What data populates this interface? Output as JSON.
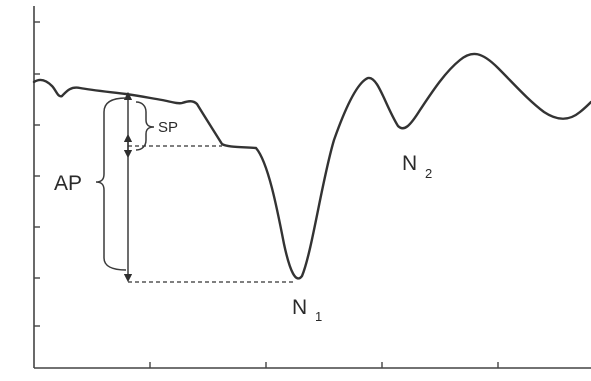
{
  "labels": {
    "ap": "AP",
    "sp": "SP",
    "n1_main": "N",
    "n1_sub": "1",
    "n2_main": "N",
    "n2_sub": "2"
  },
  "colors": {
    "ink": "#3a3a3a",
    "background": "#ffffff"
  }
}
